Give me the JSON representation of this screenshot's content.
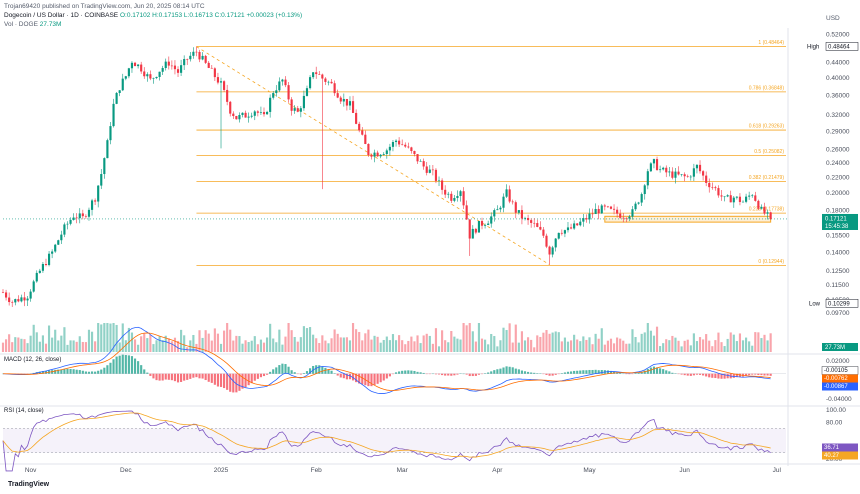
{
  "header": {
    "publisher": "Trojan69420 published on TradingView.com, Jun 20, 2025 08:14 UTC",
    "symbol": "Dogecoin / US Dollar · 1D · COINBASE",
    "ohlc": "O:0.17102  H:0.17153  L:0.16713  C:0.17121  +0.00023 (+0.13%)",
    "volume_label": "Vol · DOGE",
    "volume_value": "27.73M",
    "currency": "USD"
  },
  "brand": "TradingView",
  "colors": {
    "up": "#089981",
    "down": "#f23645",
    "fib": "#f5a623",
    "macd": "#2962ff",
    "signal": "#ff6d00",
    "rsi": "#7e57c2"
  },
  "chart_data": {
    "type": "candlestick",
    "title": "Dogecoin / US Dollar 1D COINBASE",
    "x_ticks": [
      "Nov",
      "Dec",
      "2025",
      "Feb",
      "Mar",
      "Apr",
      "May",
      "Jun",
      "Jul"
    ],
    "x_tick_days": [
      9,
      40,
      71,
      102,
      130,
      161,
      191,
      222,
      252
    ],
    "y_ticks": [
      "0.52000",
      "0.48000",
      "0.44000",
      "0.40000",
      "0.36000",
      "0.32000",
      "0.29000",
      "0.26000",
      "0.24000",
      "0.22000",
      "0.20000",
      "0.18000",
      "0.15500",
      "0.14000",
      "0.12500",
      "0.11500",
      "0.10500",
      "0.09700"
    ],
    "y_tick_values": [
      0.52,
      0.48,
      0.44,
      0.4,
      0.36,
      0.32,
      0.29,
      0.26,
      0.24,
      0.22,
      0.2,
      0.18,
      0.155,
      0.14,
      0.125,
      0.115,
      0.105,
      0.097
    ],
    "ylim": [
      0.092,
      0.535
    ],
    "xlim_days": [
      0,
      255
    ],
    "fib_levels": [
      {
        "label": "1 (0.48464)",
        "value": 0.48464
      },
      {
        "label": "0.786 (0.36848)",
        "value": 0.36848
      },
      {
        "label": "0.618 (0.29263)",
        "value": 0.29263
      },
      {
        "label": "0.5 (0.25082)",
        "value": 0.25082
      },
      {
        "label": "0.382 (0.21479)",
        "value": 0.21479
      },
      {
        "label": "0.236 (0.17738)",
        "value": 0.17738
      },
      {
        "label": "0 (0.12944)",
        "value": 0.12944
      }
    ],
    "fib_start_day": 63,
    "high_marker": {
      "label": "High",
      "value": 0.48464,
      "text": "0.48464"
    },
    "low_marker": {
      "label": "Low",
      "value": 0.10299,
      "text": "0.10299"
    },
    "last_price": {
      "value": 0.17121,
      "text": "0.17121",
      "countdown": "15:45:38"
    },
    "support_zone": [
      0.168,
      0.174
    ],
    "support_zone_days": [
      196,
      250
    ],
    "trendline": {
      "from": {
        "day": 63,
        "value": 0.484
      },
      "to": {
        "day": 178,
        "value": 0.13
      }
    },
    "anchors": [
      [
        0,
        0.11
      ],
      [
        3,
        0.104
      ],
      [
        8,
        0.108
      ],
      [
        12,
        0.125
      ],
      [
        16,
        0.14
      ],
      [
        20,
        0.162
      ],
      [
        23,
        0.175
      ],
      [
        26,
        0.172
      ],
      [
        30,
        0.195
      ],
      [
        32,
        0.225
      ],
      [
        34,
        0.27
      ],
      [
        36,
        0.34
      ],
      [
        38,
        0.38
      ],
      [
        40,
        0.405
      ],
      [
        42,
        0.445
      ],
      [
        45,
        0.425
      ],
      [
        48,
        0.395
      ],
      [
        51,
        0.42
      ],
      [
        54,
        0.44
      ],
      [
        57,
        0.415
      ],
      [
        60,
        0.45
      ],
      [
        63,
        0.47
      ],
      [
        66,
        0.435
      ],
      [
        69,
        0.405
      ],
      [
        71,
        0.385
      ],
      [
        74,
        0.33
      ],
      [
        76,
        0.315
      ],
      [
        79,
        0.32
      ],
      [
        82,
        0.33
      ],
      [
        85,
        0.315
      ],
      [
        88,
        0.37
      ],
      [
        91,
        0.395
      ],
      [
        94,
        0.335
      ],
      [
        96,
        0.325
      ],
      [
        99,
        0.37
      ],
      [
        101,
        0.42
      ],
      [
        104,
        0.4
      ],
      [
        107,
        0.385
      ],
      [
        110,
        0.355
      ],
      [
        113,
        0.34
      ],
      [
        116,
        0.29
      ],
      [
        119,
        0.255
      ],
      [
        122,
        0.255
      ],
      [
        125,
        0.26
      ],
      [
        128,
        0.275
      ],
      [
        131,
        0.265
      ],
      [
        134,
        0.25
      ],
      [
        137,
        0.235
      ],
      [
        140,
        0.225
      ],
      [
        143,
        0.205
      ],
      [
        146,
        0.195
      ],
      [
        149,
        0.205
      ],
      [
        152,
        0.155
      ],
      [
        155,
        0.165
      ],
      [
        158,
        0.17
      ],
      [
        161,
        0.18
      ],
      [
        164,
        0.2
      ],
      [
        167,
        0.18
      ],
      [
        170,
        0.17
      ],
      [
        173,
        0.165
      ],
      [
        176,
        0.155
      ],
      [
        178,
        0.14
      ],
      [
        181,
        0.16
      ],
      [
        184,
        0.16
      ],
      [
        187,
        0.165
      ],
      [
        190,
        0.172
      ],
      [
        193,
        0.18
      ],
      [
        196,
        0.182
      ],
      [
        199,
        0.178
      ],
      [
        202,
        0.175
      ],
      [
        205,
        0.178
      ],
      [
        208,
        0.2
      ],
      [
        210,
        0.23
      ],
      [
        212,
        0.24
      ],
      [
        214,
        0.23
      ],
      [
        217,
        0.225
      ],
      [
        220,
        0.222
      ],
      [
        223,
        0.22
      ],
      [
        226,
        0.235
      ],
      [
        229,
        0.215
      ],
      [
        232,
        0.205
      ],
      [
        235,
        0.192
      ],
      [
        238,
        0.195
      ],
      [
        241,
        0.19
      ],
      [
        244,
        0.2
      ],
      [
        247,
        0.18
      ],
      [
        250,
        0.171
      ]
    ],
    "volume_ticks": [
      "27.73M"
    ],
    "macd": {
      "label": "MACD (12, 26, close)",
      "values_text": [
        "-0.00105",
        "-0.00762",
        "-0.00867"
      ],
      "y_ticks": [
        "0.02000",
        "-0.04000"
      ],
      "y_tick_values": [
        0.02,
        -0.04
      ],
      "ylim": [
        -0.045,
        0.025
      ]
    },
    "rsi": {
      "label": "RSI (14, close)",
      "values_text": [
        "36.71",
        "40.27"
      ],
      "y_ticks": [
        "100.00",
        "80.00",
        "20.00"
      ],
      "y_tick_values": [
        100,
        80,
        20
      ],
      "ylim": [
        18,
        102
      ],
      "bands": [
        70,
        30
      ]
    }
  }
}
